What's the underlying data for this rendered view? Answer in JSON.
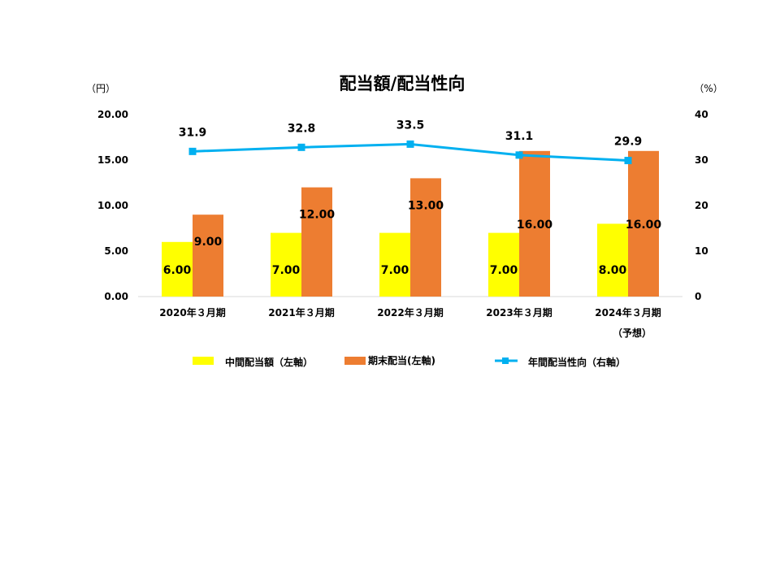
{
  "chart_data": {
    "type": "bar",
    "title": "配当額/配当性向",
    "y_left_unit": "（円）",
    "y_right_unit": "（%）",
    "categories": [
      "2020年３月期",
      "2021年３月期",
      "2022年３月期",
      "2023年３月期",
      "2024年３月期"
    ],
    "category_sub": [
      "",
      "",
      "",
      "",
      "（予想）"
    ],
    "y_left": {
      "min": 0,
      "max": 20,
      "ticks": [
        "0.00",
        "5.00",
        "10.00",
        "15.00",
        "20.00"
      ]
    },
    "y_right": {
      "min": 0,
      "max": 40,
      "ticks": [
        "0",
        "10",
        "20",
        "30",
        "40"
      ]
    },
    "grid": false,
    "legend_position": "bottom",
    "series": [
      {
        "name": "中間配当額（左軸）",
        "type": "bar",
        "axis": "left",
        "color": "#FFFF00",
        "values": [
          6.0,
          7.0,
          7.0,
          7.0,
          8.0
        ],
        "labels": [
          "6.00",
          "7.00",
          "7.00",
          "7.00",
          "8.00"
        ]
      },
      {
        "name": "期末配当(左軸)",
        "type": "bar",
        "axis": "left",
        "color": "#ED7D31",
        "values": [
          9.0,
          12.0,
          13.0,
          16.0,
          16.0
        ],
        "labels": [
          "9.00",
          "12.00",
          "13.00",
          "16.00",
          "16.00"
        ]
      },
      {
        "name": "年間配当性向（右軸）",
        "type": "line",
        "axis": "right",
        "color": "#00B0F0",
        "marker": "square",
        "values": [
          31.9,
          32.8,
          33.5,
          31.1,
          29.9
        ],
        "labels": [
          "31.9",
          "32.8",
          "33.5",
          "31.1",
          "29.9"
        ]
      }
    ]
  }
}
